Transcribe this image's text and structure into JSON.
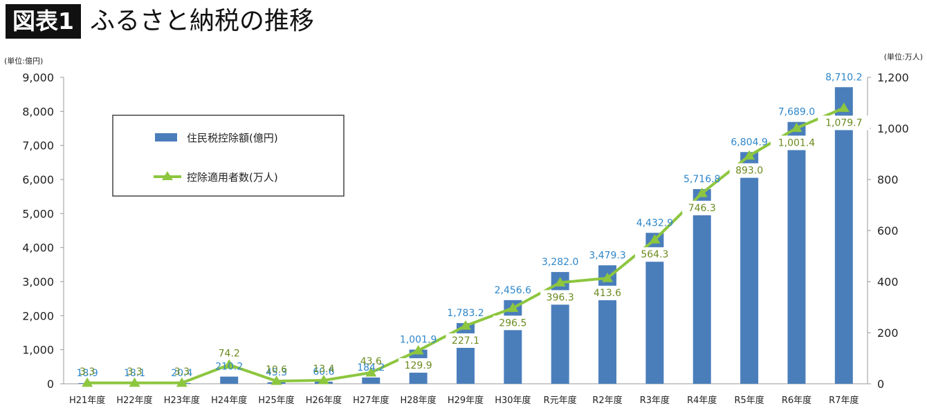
{
  "header": {
    "tag": "図表1",
    "title": "ふるさと納税の推移"
  },
  "colors": {
    "bar": "#4a7ebb",
    "line": "#8dc63f",
    "bar_label": "#2e86c9",
    "line_label": "#6b8a1e"
  },
  "chart_data": {
    "type": "bar",
    "categories": [
      "H21年度",
      "H22年度",
      "H23年度",
      "H24年度",
      "H25年度",
      "H26年度",
      "H27年度",
      "H28年度",
      "H29年度",
      "H30年度",
      "R元年度",
      "R2年度",
      "R3年度",
      "R4年度",
      "R5年度",
      "R6年度",
      "R7年度"
    ],
    "series": [
      {
        "name": "住民税控除額(億円)",
        "type": "bar",
        "axis": "left",
        "values": [
          18.9,
          18.1,
          20.4,
          210.2,
          45.3,
          60.6,
          184.2,
          1001.9,
          1783.2,
          2456.6,
          3282.0,
          3479.3,
          4432.9,
          5716.8,
          6804.9,
          7689.0,
          8710.2
        ],
        "labels": [
          "18.9",
          "18.1",
          "20.4",
          "210.2",
          "45.3",
          "60.6",
          "184.2",
          "1,001.9",
          "1,783.2",
          "2,456.6",
          "3,282.0",
          "3,479.3",
          "4,432.9",
          "5,716.8",
          "6,804.9",
          "7,689.0",
          "8,710.2"
        ]
      },
      {
        "name": "控除適用者数(万人)",
        "type": "line",
        "axis": "right",
        "values": [
          3.3,
          3.3,
          3.3,
          74.2,
          10.6,
          13.4,
          43.6,
          129.9,
          227.1,
          296.5,
          396.3,
          413.6,
          564.3,
          746.3,
          893.0,
          1001.4,
          1079.7
        ],
        "labels": [
          "3.3",
          "3.3",
          "3.3",
          "74.2",
          "10.6",
          "13.4",
          "43.6",
          "129.9",
          "227.1",
          "296.5",
          "396.3",
          "413.6",
          "564.3",
          "746.3",
          "893.0",
          "1,001.4",
          "1,079.7"
        ]
      }
    ],
    "y_left": {
      "unit": "(単位:億円)",
      "ylim": [
        0,
        9000
      ],
      "ticks": [
        "0",
        "1,000",
        "2,000",
        "3,000",
        "4,000",
        "5,000",
        "6,000",
        "7,000",
        "8,000",
        "9,000"
      ]
    },
    "y_right": {
      "unit": "(単位:万人)",
      "ylim": [
        0,
        1200
      ],
      "ticks": [
        "0",
        "200",
        "400",
        "600",
        "800",
        "1,000",
        "1,200"
      ]
    },
    "legend": {
      "position": "top-left",
      "items": [
        "住民税控除額(億円)",
        "控除適用者数(万人)"
      ]
    },
    "grid": false
  }
}
